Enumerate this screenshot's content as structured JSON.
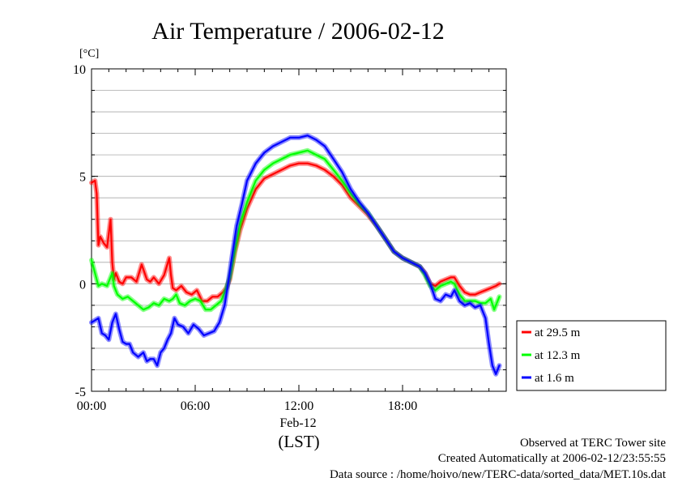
{
  "chart_data": {
    "type": "line",
    "title": "Air Temperature / 2006-02-12",
    "ylabel": "[°C]",
    "ylim": [
      -5,
      10
    ],
    "yticks": [
      {
        "value": 10,
        "label": "10"
      },
      {
        "value": 5,
        "label": "5"
      },
      {
        "value": 0,
        "label": "0"
      },
      {
        "value": -5,
        "label": "-5"
      }
    ],
    "xlim": [
      0,
      24
    ],
    "xticks": [
      {
        "value": 0,
        "label": "00:00"
      },
      {
        "value": 6,
        "label": "06:00"
      },
      {
        "value": 12,
        "label": "12:00"
      },
      {
        "value": 18,
        "label": "18:00"
      }
    ],
    "date_label": "Feb-12",
    "xlabel": "(LST)",
    "grid": true,
    "legend_position": "bottom-right outside",
    "series": [
      {
        "name": "at 29.5 m",
        "color": "#ff0000",
        "x": [
          0.0,
          0.2,
          0.3,
          0.4,
          0.5,
          0.7,
          0.9,
          1.1,
          1.2,
          1.3,
          1.4,
          1.6,
          1.8,
          2.0,
          2.3,
          2.6,
          2.9,
          3.2,
          3.4,
          3.6,
          3.9,
          4.2,
          4.5,
          4.6,
          4.7,
          4.9,
          5.2,
          5.5,
          5.8,
          6.1,
          6.4,
          6.7,
          7.0,
          7.3,
          7.6,
          7.8,
          8.0,
          8.3,
          8.6,
          9.0,
          9.5,
          10.0,
          10.5,
          11.0,
          11.5,
          12.0,
          12.5,
          13.0,
          13.5,
          14.0,
          14.5,
          15.0,
          15.5,
          16.0,
          16.5,
          17.0,
          17.5,
          18.0,
          18.5,
          19.0,
          19.3,
          19.6,
          19.9,
          20.2,
          20.5,
          20.8,
          21.0,
          21.3,
          21.6,
          21.9,
          22.2,
          22.5,
          22.8,
          23.1,
          23.4,
          23.6
        ],
        "values": [
          4.7,
          4.8,
          4.2,
          1.8,
          2.2,
          1.9,
          1.7,
          3.0,
          1.0,
          0.2,
          0.5,
          0.1,
          0.0,
          0.3,
          0.3,
          0.1,
          0.9,
          0.2,
          0.1,
          0.3,
          0.0,
          0.4,
          1.2,
          0.4,
          -0.2,
          -0.3,
          -0.1,
          -0.4,
          -0.5,
          -0.3,
          -0.8,
          -0.8,
          -0.6,
          -0.6,
          -0.4,
          -0.2,
          0.2,
          1.5,
          2.5,
          3.5,
          4.4,
          4.9,
          5.1,
          5.3,
          5.5,
          5.6,
          5.6,
          5.5,
          5.3,
          5.0,
          4.6,
          4.0,
          3.6,
          3.2,
          2.7,
          2.1,
          1.5,
          1.2,
          1.0,
          0.8,
          0.5,
          0.0,
          -0.1,
          0.1,
          0.2,
          0.3,
          0.3,
          -0.1,
          -0.4,
          -0.5,
          -0.5,
          -0.4,
          -0.3,
          -0.2,
          -0.1,
          0.0
        ]
      },
      {
        "name": "at 12.3 m",
        "color": "#00ff00",
        "x": [
          0.0,
          0.2,
          0.4,
          0.6,
          0.9,
          1.2,
          1.3,
          1.5,
          1.8,
          2.1,
          2.4,
          2.7,
          3.0,
          3.3,
          3.6,
          3.9,
          4.2,
          4.5,
          4.7,
          4.9,
          5.1,
          5.4,
          5.7,
          6.0,
          6.3,
          6.6,
          6.9,
          7.2,
          7.5,
          7.8,
          8.0,
          8.3,
          8.6,
          9.0,
          9.5,
          10.0,
          10.5,
          11.0,
          11.5,
          12.0,
          12.5,
          13.0,
          13.5,
          14.0,
          14.5,
          15.0,
          15.5,
          16.0,
          16.5,
          17.0,
          17.5,
          18.0,
          18.5,
          19.0,
          19.3,
          19.6,
          19.9,
          20.2,
          20.5,
          20.8,
          21.0,
          21.3,
          21.6,
          21.9,
          22.2,
          22.5,
          22.8,
          23.1,
          23.3,
          23.6
        ],
        "values": [
          1.1,
          0.5,
          -0.1,
          0.0,
          -0.1,
          0.5,
          -0.1,
          -0.5,
          -0.7,
          -0.6,
          -0.8,
          -1.0,
          -1.2,
          -1.1,
          -0.9,
          -1.0,
          -0.7,
          -0.8,
          -0.7,
          -0.5,
          -0.9,
          -1.0,
          -0.8,
          -0.7,
          -0.8,
          -1.2,
          -1.2,
          -1.0,
          -0.8,
          -0.2,
          0.3,
          1.6,
          2.8,
          3.8,
          4.8,
          5.3,
          5.6,
          5.8,
          6.0,
          6.1,
          6.2,
          6.0,
          5.8,
          5.3,
          4.8,
          4.2,
          3.7,
          3.3,
          2.7,
          2.1,
          1.5,
          1.2,
          1.0,
          0.8,
          0.4,
          -0.1,
          -0.3,
          -0.1,
          0.0,
          0.1,
          0.0,
          -0.5,
          -0.8,
          -0.8,
          -0.8,
          -0.9,
          -0.9,
          -0.7,
          -1.2,
          -0.6
        ]
      },
      {
        "name": "at 1.6 m",
        "color": "#0000ff",
        "x": [
          0.0,
          0.2,
          0.4,
          0.6,
          0.8,
          1.0,
          1.2,
          1.4,
          1.6,
          1.8,
          2.0,
          2.2,
          2.4,
          2.7,
          3.0,
          3.2,
          3.4,
          3.6,
          3.8,
          4.0,
          4.2,
          4.4,
          4.6,
          4.8,
          5.0,
          5.3,
          5.6,
          5.9,
          6.2,
          6.5,
          6.8,
          7.1,
          7.4,
          7.7,
          7.9,
          8.1,
          8.4,
          8.7,
          9.0,
          9.5,
          10.0,
          10.5,
          11.0,
          11.5,
          12.0,
          12.5,
          13.0,
          13.5,
          14.0,
          14.5,
          15.0,
          15.5,
          16.0,
          16.5,
          17.0,
          17.5,
          18.0,
          18.5,
          19.0,
          19.3,
          19.6,
          19.9,
          20.2,
          20.5,
          20.8,
          21.0,
          21.3,
          21.6,
          21.9,
          22.2,
          22.5,
          22.8,
          23.0,
          23.2,
          23.4,
          23.6
        ],
        "values": [
          -1.8,
          -1.7,
          -1.6,
          -2.3,
          -2.4,
          -2.6,
          -1.8,
          -1.4,
          -2.1,
          -2.7,
          -2.8,
          -2.8,
          -3.2,
          -3.4,
          -3.2,
          -3.6,
          -3.5,
          -3.5,
          -3.8,
          -3.2,
          -3.0,
          -2.6,
          -2.3,
          -1.6,
          -1.9,
          -2.0,
          -2.3,
          -1.9,
          -2.1,
          -2.4,
          -2.3,
          -2.2,
          -1.8,
          -1.0,
          0.0,
          1.1,
          2.7,
          3.7,
          4.8,
          5.6,
          6.1,
          6.4,
          6.6,
          6.8,
          6.8,
          6.9,
          6.7,
          6.4,
          5.8,
          5.2,
          4.4,
          3.8,
          3.3,
          2.7,
          2.1,
          1.5,
          1.2,
          1.0,
          0.8,
          0.5,
          0.0,
          -0.7,
          -0.8,
          -0.5,
          -0.6,
          -0.3,
          -0.8,
          -1.0,
          -0.9,
          -1.1,
          -1.0,
          -1.6,
          -2.8,
          -3.8,
          -4.2,
          -3.8
        ]
      }
    ]
  },
  "footer": {
    "site": "Observed at TERC Tower site",
    "created": "Created Automatically at 2006-02-12/23:55:55",
    "source": "Data source : /home/hoivo/new/TERC-data/sorted_data/MET.10s.dat"
  }
}
